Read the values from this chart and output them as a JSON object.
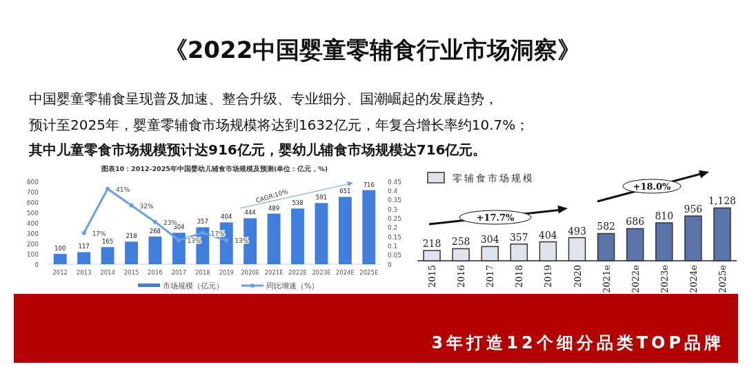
{
  "chart_data": [
    {
      "type": "bar",
      "title": "图表10：2012-2025年中国婴幼儿辅食市场规模及预测(单位：亿元，%)",
      "categories": [
        "2012",
        "2013",
        "2014",
        "2015",
        "2016",
        "2017",
        "2018",
        "2019",
        "2020E",
        "2021E",
        "2022E",
        "2023E",
        "2024E",
        "2025E"
      ],
      "series": [
        {
          "name": "市场规模（亿元）",
          "color": "#3f7fdb",
          "values": [
            100,
            117,
            165,
            218,
            268,
            304,
            357,
            404,
            444,
            489,
            538,
            591,
            651,
            716
          ]
        },
        {
          "name": "同比增速（%）",
          "type": "line",
          "axis": "y2",
          "marker": "circle",
          "color": "#6a9fe3",
          "values": [
            null,
            0.17,
            0.41,
            0.32,
            0.23,
            0.13,
            0.17,
            0.13,
            null,
            null,
            null,
            null,
            null,
            null
          ],
          "value_labels": [
            null,
            "17%",
            "41%",
            "32%",
            "23%",
            "13%",
            "17%",
            "13%",
            null,
            null,
            null,
            null,
            null,
            null
          ]
        }
      ],
      "ylim": [
        0,
        800
      ],
      "yticks": [
        0,
        100,
        200,
        300,
        400,
        500,
        600,
        700,
        800
      ],
      "y2lim": [
        0,
        0.45
      ],
      "y2ticks": [
        0,
        0.05,
        0.1,
        0.15,
        0.2,
        0.25,
        0.3,
        0.35,
        0.4,
        0.45
      ],
      "data_labels": true,
      "legend": "bottom",
      "grid": false,
      "annotations": [
        "《2022中国婴童零辅食行业市场洞察》",
        "中国婴童零辅食呈现普及加速、整合升级、专业细分、国潮崛起的发展趋势，",
        "预计至2025年，婴童零辅食市场规模将达到1632亿元，年复合增长率约10.7%；",
        "其中儿童零食市场规模预计达916亿元，婴幼儿辅食市场规模达716亿元。",
        "CAGR:10%"
      ]
    },
    {
      "type": "bar",
      "categories": [
        "2015",
        "2016",
        "2017",
        "2018",
        "2019",
        "2020",
        "2021e",
        "2022e",
        "2023e",
        "2024e",
        "2025e"
      ],
      "series": [
        {
          "name": "零辅食市场规模",
          "color": "#dfe3ec",
          "colors": [
            "#dfe3ec",
            "#dfe3ec",
            "#dfe3ec",
            "#dfe3ec",
            "#dfe3ec",
            "#dfe3ec",
            "#5a73a9",
            "#5a73a9",
            "#5a73a9",
            "#5a73a9",
            "#5a73a9"
          ],
          "values": [
            218,
            258,
            304,
            357,
            404,
            493,
            582,
            686,
            810,
            956,
            1128
          ],
          "value_labels": [
            "218",
            "258",
            "304",
            "357",
            "404",
            "493",
            "582",
            "686",
            "810",
            "956",
            "1,128"
          ]
        }
      ],
      "data_labels": true,
      "legend": "top left",
      "annotations": [
        "+17.7%",
        "+18.0%",
        "3年打造12个细分品类TOP品牌"
      ]
    }
  ]
}
